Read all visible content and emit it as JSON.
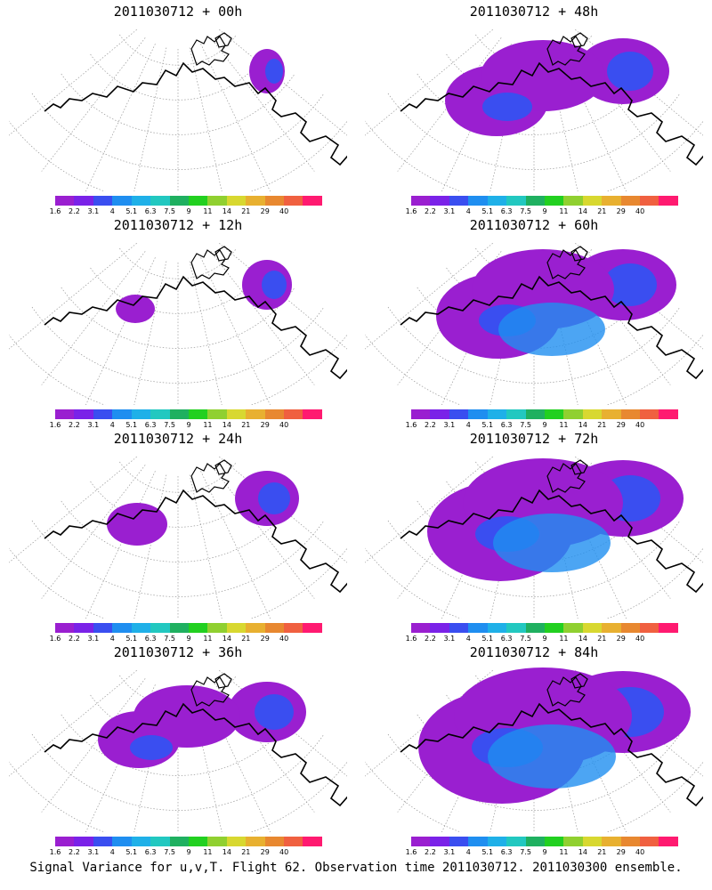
{
  "panels": [
    {
      "title": "2011030712 + 00h",
      "intensity": 0
    },
    {
      "title": "2011030712 + 48h",
      "intensity": 4
    },
    {
      "title": "2011030712 + 12h",
      "intensity": 1
    },
    {
      "title": "2011030712 + 60h",
      "intensity": 5
    },
    {
      "title": "2011030712 + 24h",
      "intensity": 2
    },
    {
      "title": "2011030712 + 72h",
      "intensity": 6
    },
    {
      "title": "2011030712 + 36h",
      "intensity": 3
    },
    {
      "title": "2011030712 + 84h",
      "intensity": 7
    }
  ],
  "colorbar": {
    "labels": [
      "1.6",
      "2.2",
      "3.1",
      "4",
      "5.1",
      "6.3",
      "7.5",
      "9",
      "11",
      "14",
      "21",
      "29",
      "40"
    ],
    "colors": [
      "#9a1fd0",
      "#7a22e8",
      "#3a4ef0",
      "#1f8ef0",
      "#1fb0e8",
      "#22c8c0",
      "#1fb060",
      "#22d020",
      "#90d030",
      "#d8d830",
      "#e8b030",
      "#e88830",
      "#f06040",
      "#ff1a70"
    ]
  },
  "footer": "Signal Variance for u,v,T. Flight 62. Observation time 2011030712. 2011030300 ensemble.",
  "colors": {
    "land_outline": "#000000",
    "grid": "#999999",
    "low": "#9a1fd0",
    "mid": "#3a4ef0",
    "high": "#1f8ef0"
  }
}
